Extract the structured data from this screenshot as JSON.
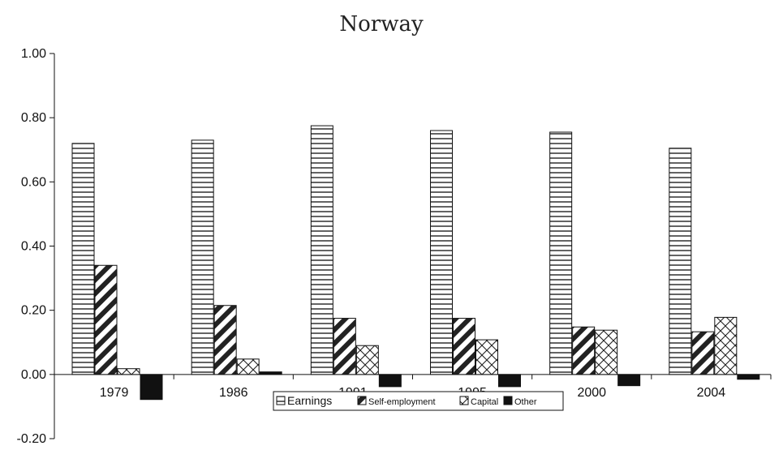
{
  "chart_data": {
    "type": "bar",
    "title": "Norway",
    "xlabel": "",
    "ylabel": "",
    "categories": [
      "1979",
      "1986",
      "1991",
      "1995",
      "2000",
      "2004"
    ],
    "series": [
      {
        "name": "Earnings",
        "pattern": "horizontal-lines",
        "values": [
          0.72,
          0.73,
          0.775,
          0.76,
          0.755,
          0.705
        ]
      },
      {
        "name": "Self-employment",
        "pattern": "diagonal-stripes",
        "values": [
          0.34,
          0.215,
          0.175,
          0.175,
          0.148,
          0.133
        ]
      },
      {
        "name": "Capital",
        "pattern": "crosshatch",
        "values": [
          0.018,
          0.048,
          0.09,
          0.108,
          0.138,
          0.178
        ]
      },
      {
        "name": "Other",
        "pattern": "solid-black",
        "values": [
          -0.078,
          0.008,
          -0.038,
          -0.038,
          -0.035,
          -0.015
        ]
      }
    ],
    "ylim": [
      -0.2,
      1.0
    ],
    "yticks": [
      "1.00",
      "0.80",
      "0.60",
      "0.40",
      "0.20",
      "0.00",
      "-0.20"
    ],
    "ytick_values": [
      1.0,
      0.8,
      0.6,
      0.4,
      0.2,
      0.0,
      -0.2
    ],
    "grid": false,
    "legend_position": "bottom-center",
    "colors": {
      "ink": "#111111",
      "fill": "#ffffff"
    }
  }
}
